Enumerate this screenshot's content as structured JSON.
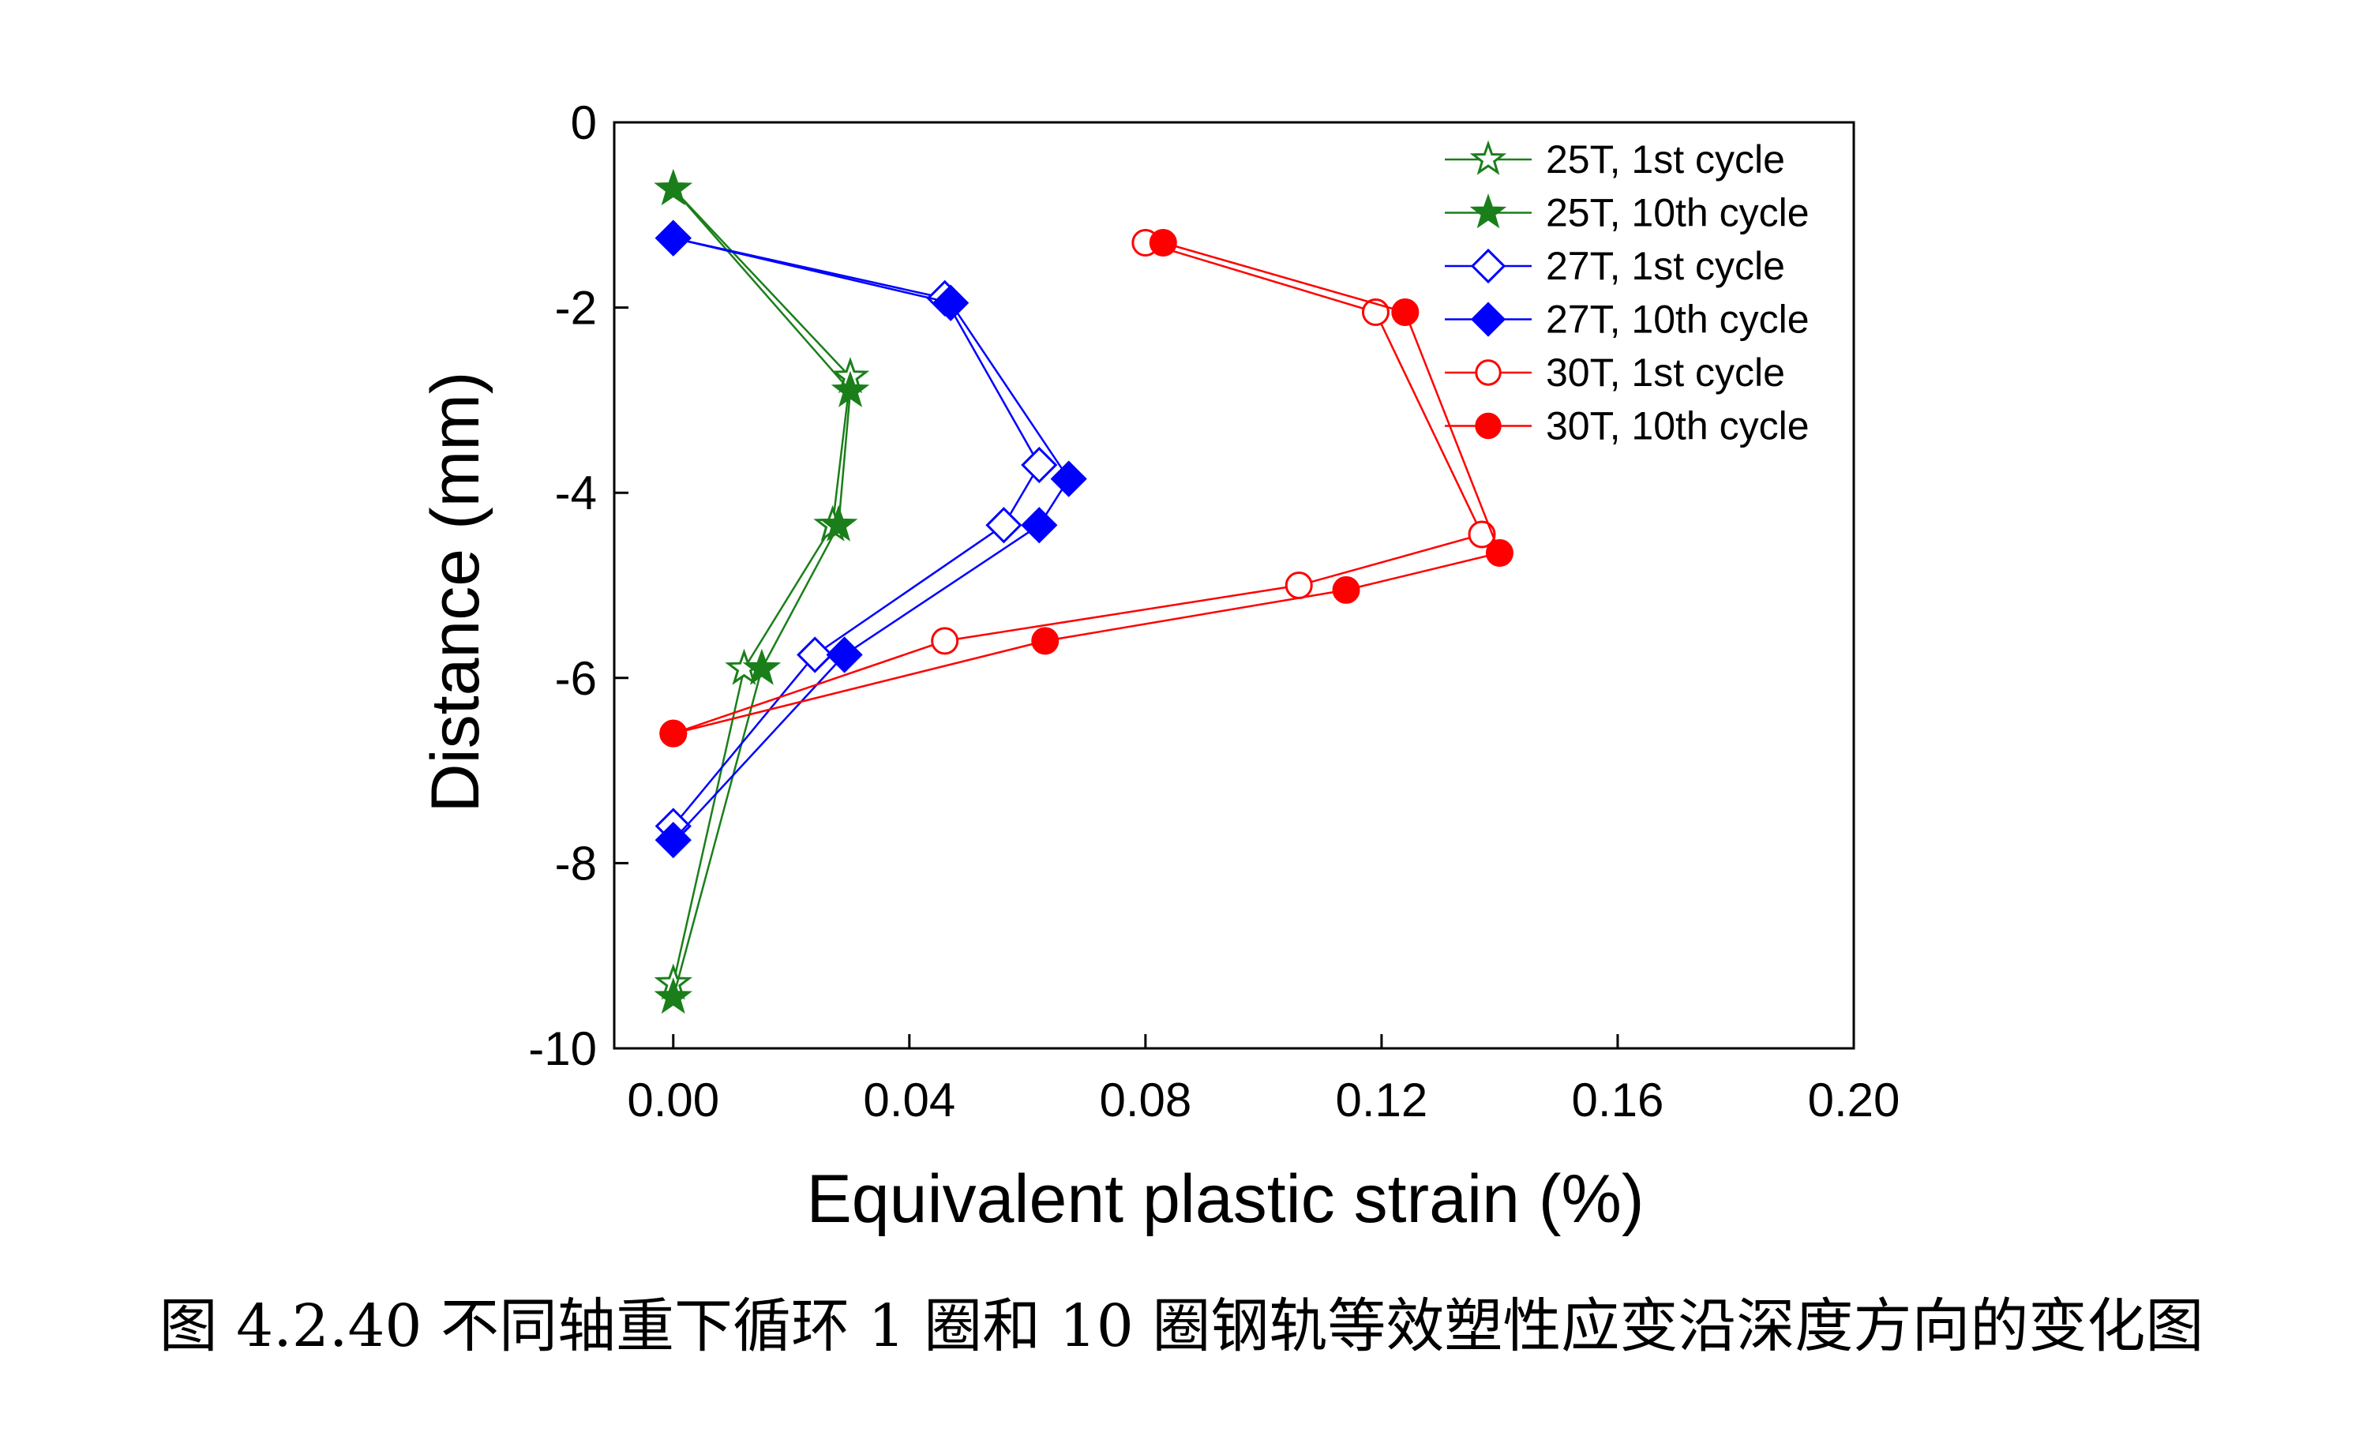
{
  "chart_data": {
    "type": "line",
    "xlabel": "Equivalent plastic strain (%)",
    "ylabel": "Distance (mm)",
    "xlim": [
      -0.01,
      0.2
    ],
    "ylim": [
      -10,
      0
    ],
    "xticks": [
      "0.00",
      "0.04",
      "0.08",
      "0.12",
      "0.16",
      "0.20"
    ],
    "xtick_values": [
      0.0,
      0.04,
      0.08,
      0.12,
      0.16,
      0.2
    ],
    "yticks": [
      "0",
      "-2",
      "-4",
      "-6",
      "-8",
      "-10"
    ],
    "ytick_values": [
      0,
      -2,
      -4,
      -6,
      -8,
      -10
    ],
    "grid": false,
    "legend_position": "top-right",
    "series": [
      {
        "name": "25T, 1st cycle",
        "color": "#1a7f1a",
        "marker": "star-open",
        "x": [
          0.0,
          0.03,
          0.027,
          0.012,
          0.0
        ],
        "y": [
          -0.72,
          -2.75,
          -4.35,
          -5.9,
          -9.3
        ]
      },
      {
        "name": "25T, 10th cycle",
        "color": "#1a7f1a",
        "marker": "star-filled",
        "x": [
          0.0,
          0.03,
          0.028,
          0.015,
          0.0
        ],
        "y": [
          -0.72,
          -2.9,
          -4.35,
          -5.9,
          -9.45
        ]
      },
      {
        "name": "27T, 1st cycle",
        "color": "#0000ff",
        "marker": "diamond-open",
        "x": [
          0.0,
          0.046,
          0.062,
          0.056,
          0.024,
          0.0
        ],
        "y": [
          -1.25,
          -1.9,
          -3.7,
          -4.35,
          -5.75,
          -7.6
        ]
      },
      {
        "name": "27T, 10th cycle",
        "color": "#0000ff",
        "marker": "diamond-filled",
        "x": [
          0.0,
          0.047,
          0.067,
          0.062,
          0.029,
          0.0
        ],
        "y": [
          -1.25,
          -1.95,
          -3.85,
          -4.35,
          -5.75,
          -7.75
        ]
      },
      {
        "name": "30T, 1st cycle",
        "color": "#ff0000",
        "marker": "circle-open",
        "x": [
          0.08,
          0.119,
          0.137,
          0.106,
          0.046,
          0.0
        ],
        "y": [
          -1.3,
          -2.05,
          -4.45,
          -5.0,
          -5.6,
          -6.6
        ]
      },
      {
        "name": "30T, 10th cycle",
        "color": "#ff0000",
        "marker": "circle-filled",
        "x": [
          0.083,
          0.124,
          0.14,
          0.114,
          0.063,
          0.0
        ],
        "y": [
          -1.3,
          -2.05,
          -4.65,
          -5.05,
          -5.6,
          -6.6
        ]
      }
    ]
  },
  "caption": "图 4.2.40  不同轴重下循环 1 圈和 10 圈钢轨等效塑性应变沿深度方向的变化图"
}
